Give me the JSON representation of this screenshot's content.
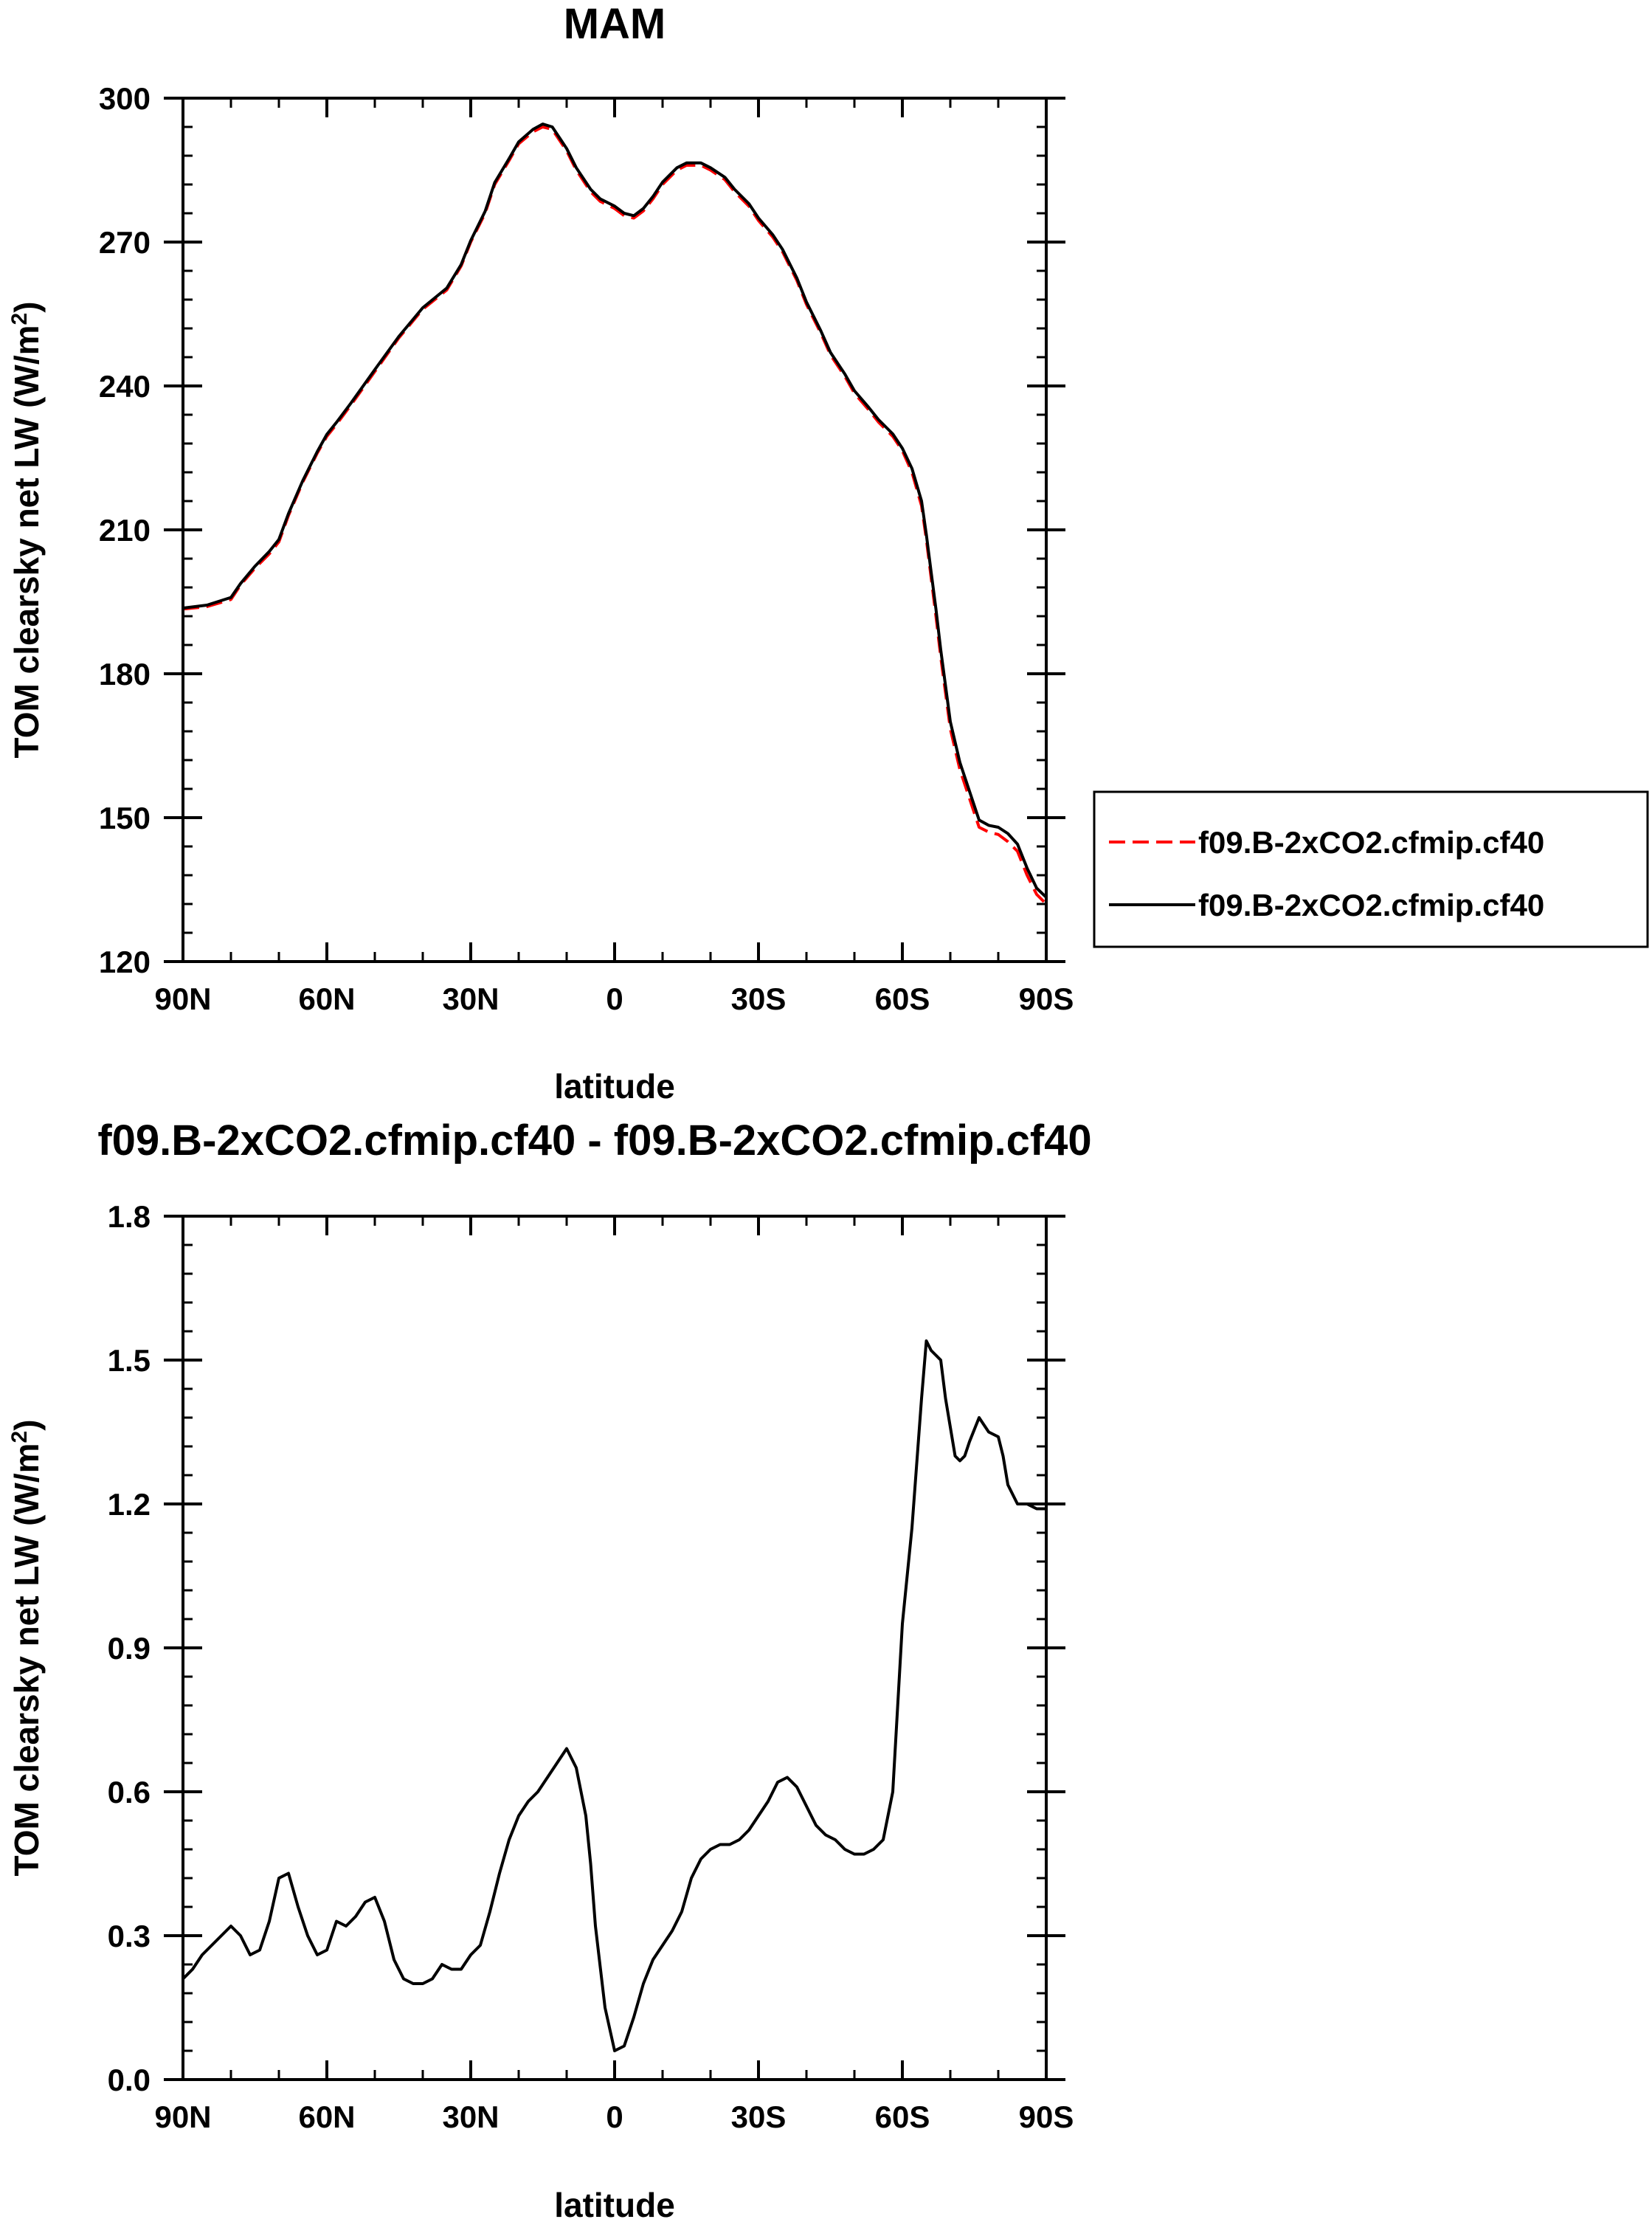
{
  "chart_data": [
    {
      "type": "line",
      "title": "MAM",
      "xlabel": "latitude",
      "ylabel": "TOM clearsky net LW (W/m²)",
      "xlim": [
        90,
        -90
      ],
      "ylim": [
        120,
        300
      ],
      "x_ticks": [
        90,
        60,
        30,
        0,
        -30,
        -60,
        -90
      ],
      "x_tick_labels": [
        "90N",
        "60N",
        "30N",
        "0",
        "30S",
        "60S",
        "90S"
      ],
      "y_ticks": [
        120,
        150,
        180,
        210,
        240,
        270,
        300
      ],
      "y_tick_labels": [
        "120",
        "150",
        "180",
        "210",
        "240",
        "270",
        "300"
      ],
      "grid": false,
      "legend_position": "outside right",
      "series": [
        {
          "name": "f09.B-2xCO2.cfmip.cf40",
          "color": "#ff0000",
          "style": "dashed",
          "x": [
            90,
            85,
            80,
            78,
            75,
            72,
            70,
            68,
            65,
            62,
            60,
            58,
            55,
            50,
            45,
            40,
            35,
            32,
            30,
            27,
            25,
            22,
            20,
            17,
            15,
            13,
            10,
            8,
            5,
            3,
            0,
            -2,
            -4,
            -6,
            -8,
            -10,
            -13,
            -15,
            -18,
            -20,
            -23,
            -25,
            -28,
            -30,
            -33,
            -35,
            -38,
            -40,
            -43,
            -45,
            -48,
            -50,
            -53,
            -55,
            -58,
            -60,
            -62,
            -64,
            -65,
            -66,
            -67,
            -68,
            -69,
            -70,
            -72,
            -74,
            -76,
            -78,
            -80,
            -82,
            -84,
            -86,
            -88,
            -90
          ],
          "values": [
            193.5,
            194.0,
            195.5,
            198.5,
            202,
            205,
            207.5,
            213,
            220,
            226,
            229.5,
            232,
            236,
            243,
            250,
            256,
            260,
            265,
            270,
            276,
            282,
            287,
            290.5,
            293,
            294,
            293.5,
            289,
            285,
            280.5,
            278.5,
            277,
            275.5,
            275,
            276.5,
            279,
            282,
            285,
            286,
            286,
            285,
            283,
            280.5,
            277.5,
            274.5,
            271,
            268,
            262,
            257,
            251,
            246.5,
            242,
            238.5,
            235,
            232.5,
            229.5,
            226.5,
            222,
            215,
            208,
            200,
            192,
            183.5,
            176,
            168.5,
            160,
            154,
            148,
            147,
            146.5,
            145,
            143,
            138,
            134,
            132
          ]
        },
        {
          "name": "f09.B-2xCO2.cfmip.cf40",
          "color": "#000000",
          "style": "solid",
          "x": [
            90,
            85,
            80,
            78,
            75,
            72,
            70,
            68,
            65,
            62,
            60,
            58,
            55,
            50,
            45,
            40,
            35,
            32,
            30,
            27,
            25,
            22,
            20,
            17,
            15,
            13,
            10,
            8,
            5,
            3,
            0,
            -2,
            -4,
            -6,
            -8,
            -10,
            -13,
            -15,
            -18,
            -20,
            -23,
            -25,
            -28,
            -30,
            -33,
            -35,
            -38,
            -40,
            -43,
            -45,
            -48,
            -50,
            -53,
            -55,
            -58,
            -60,
            -62,
            -64,
            -65,
            -66,
            -67,
            -68,
            -69,
            -70,
            -72,
            -74,
            -76,
            -78,
            -80,
            -82,
            -84,
            -86,
            -88,
            -90
          ],
          "values": [
            193.7,
            194.3,
            195.9,
            198.8,
            202.4,
            205.5,
            208,
            213.4,
            220.3,
            226.3,
            229.9,
            232.4,
            236.4,
            243.4,
            250.3,
            256.3,
            260.4,
            265.3,
            270.3,
            276.4,
            282.4,
            287.4,
            290.9,
            293.5,
            294.6,
            294,
            289.5,
            285.5,
            281,
            279,
            277.5,
            276,
            275.5,
            277,
            279.5,
            282.5,
            285.5,
            286.5,
            286.5,
            285.5,
            283.5,
            281,
            278,
            275,
            271.5,
            268.5,
            262.5,
            257.5,
            251.5,
            247,
            242.5,
            239,
            235.5,
            233,
            230,
            227,
            222.8,
            216,
            209,
            201.2,
            193.5,
            185,
            177.5,
            170,
            161.5,
            155.5,
            149.5,
            148.4,
            148,
            146.7,
            144.5,
            139.5,
            135.3,
            133.4
          ]
        }
      ]
    },
    {
      "type": "line",
      "title": "f09.B-2xCO2.cfmip.cf40 - f09.B-2xCO2.cfmip.cf40",
      "xlabel": "latitude",
      "ylabel": "TOM clearsky net LW (W/m²)",
      "xlim": [
        90,
        -90
      ],
      "ylim": [
        0.0,
        1.8
      ],
      "x_ticks": [
        90,
        60,
        30,
        0,
        -30,
        -60,
        -90
      ],
      "x_tick_labels": [
        "90N",
        "60N",
        "30N",
        "0",
        "30S",
        "60S",
        "90S"
      ],
      "y_ticks": [
        0.0,
        0.3,
        0.6,
        0.9,
        1.2,
        1.5,
        1.8
      ],
      "y_tick_labels": [
        "0.0",
        "0.3",
        "0.6",
        "0.9",
        "1.2",
        "1.5",
        "1.8"
      ],
      "grid": false,
      "series": [
        {
          "color": "#000000",
          "style": "solid",
          "x": [
            90,
            88,
            86,
            84,
            82,
            80,
            78,
            76,
            74,
            72,
            70,
            68,
            66,
            64,
            62,
            60,
            58,
            56,
            54,
            52,
            50,
            48,
            46,
            44,
            42,
            40,
            38,
            36,
            34,
            32,
            30,
            28,
            26,
            24,
            22,
            20,
            18,
            16,
            14,
            12,
            10,
            8,
            6,
            5,
            4,
            2,
            0,
            -2,
            -4,
            -6,
            -8,
            -10,
            -12,
            -14,
            -16,
            -18,
            -20,
            -22,
            -24,
            -26,
            -28,
            -30,
            -32,
            -34,
            -36,
            -38,
            -40,
            -42,
            -44,
            -46,
            -48,
            -50,
            -52,
            -54,
            -56,
            -58,
            -60,
            -62,
            -64,
            -65,
            -66,
            -67,
            -68,
            -69,
            -70,
            -71,
            -72,
            -73,
            -74,
            -76,
            -78,
            -80,
            -81,
            -82,
            -84,
            -86,
            -88,
            -90
          ],
          "values": [
            0.21,
            0.23,
            0.26,
            0.28,
            0.3,
            0.32,
            0.3,
            0.26,
            0.27,
            0.33,
            0.42,
            0.43,
            0.36,
            0.3,
            0.26,
            0.27,
            0.33,
            0.32,
            0.34,
            0.37,
            0.38,
            0.33,
            0.25,
            0.21,
            0.2,
            0.2,
            0.21,
            0.24,
            0.23,
            0.23,
            0.26,
            0.28,
            0.35,
            0.43,
            0.5,
            0.55,
            0.58,
            0.6,
            0.63,
            0.66,
            0.69,
            0.65,
            0.55,
            0.45,
            0.32,
            0.15,
            0.06,
            0.07,
            0.13,
            0.2,
            0.25,
            0.28,
            0.31,
            0.35,
            0.42,
            0.46,
            0.48,
            0.49,
            0.49,
            0.5,
            0.52,
            0.55,
            0.58,
            0.62,
            0.63,
            0.61,
            0.57,
            0.53,
            0.51,
            0.5,
            0.48,
            0.47,
            0.47,
            0.48,
            0.5,
            0.6,
            0.95,
            1.15,
            1.42,
            1.54,
            1.52,
            1.51,
            1.5,
            1.42,
            1.36,
            1.3,
            1.29,
            1.3,
            1.33,
            1.38,
            1.35,
            1.34,
            1.3,
            1.24,
            1.2,
            1.2,
            1.19,
            1.19
          ]
        }
      ]
    }
  ]
}
